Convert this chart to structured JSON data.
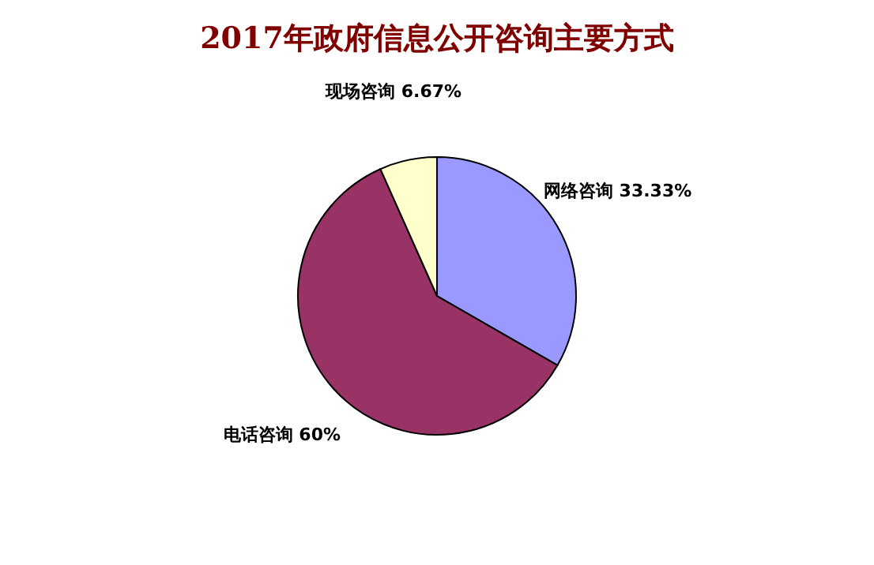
{
  "chart_data": {
    "type": "pie",
    "title": "2017年政府信息公开咨询主要方式",
    "categories": [
      "网络咨询",
      "电话咨询",
      "现场咨询"
    ],
    "values": [
      33.33,
      60,
      6.67
    ],
    "colors": [
      "#9999ff",
      "#993366",
      "#ffffcc"
    ],
    "value_labels": [
      "33.33%",
      "60%",
      "6.67%"
    ],
    "legend": false
  }
}
